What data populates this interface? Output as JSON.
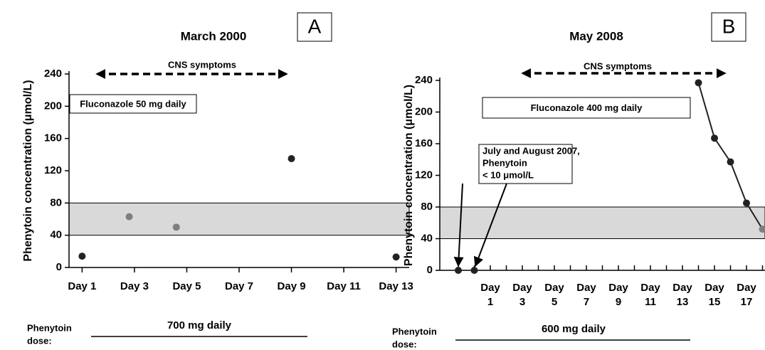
{
  "chart_data": [
    {
      "type": "scatter",
      "panel_label": "A",
      "title": "March 2000",
      "y_label": "Phenytoin concentration (μmol/L)",
      "ylim": [
        0,
        240
      ],
      "yticks": [
        0,
        40,
        80,
        120,
        160,
        200,
        240
      ],
      "xlim": [
        0.5,
        13.5
      ],
      "xticks": [
        {
          "value": 1,
          "label": "Day 1"
        },
        {
          "value": 3,
          "label": "Day 3"
        },
        {
          "value": 5,
          "label": "Day 5"
        },
        {
          "value": 7,
          "label": "Day 7"
        },
        {
          "value": 9,
          "label": "Day 9"
        },
        {
          "value": 11,
          "label": "Day 11"
        },
        {
          "value": 13,
          "label": "Day 13"
        }
      ],
      "reference_range": [
        40,
        80
      ],
      "reference_color": "#d9d9d9",
      "series": [
        {
          "x": [
            1,
            2.8,
            4.6,
            9,
            13
          ],
          "values": [
            14,
            63,
            50,
            135,
            13
          ],
          "point_colors": [
            "#222222",
            "#7f7f7f",
            "#7f7f7f",
            "#222222",
            "#222222"
          ],
          "line": false
        }
      ],
      "symptom_label": "CNS symptoms",
      "drug_label": "Fluconazole 50 mg daily",
      "dose_label": [
        "Phenytoin",
        "dose:"
      ],
      "dose_value": "700 mg daily"
    },
    {
      "type": "scatter",
      "panel_label": "B",
      "title": "May 2008",
      "y_label": "Phenytoin concentration (μmol/L)",
      "ylim": [
        0,
        240
      ],
      "yticks": [
        0,
        40,
        80,
        120,
        160,
        200,
        240
      ],
      "categories": [
        null,
        null,
        "Day 1",
        null,
        "Day 3",
        null,
        "Day 5",
        null,
        "Day 7",
        null,
        "Day 9",
        null,
        "Day 11",
        null,
        "Day 13",
        null,
        "Day 15",
        null,
        "Day 17",
        null
      ],
      "reference_range": [
        40,
        80
      ],
      "reference_color": "#d9d9d9",
      "series": [
        {
          "values": [
            0,
            0,
            null,
            null,
            null,
            null,
            null,
            null,
            null,
            null,
            null,
            null,
            null,
            null,
            null,
            null,
            null,
            null,
            null,
            null
          ],
          "point_colors": [
            "#222222",
            "#222222",
            null,
            null,
            null,
            null,
            null,
            null,
            null,
            null,
            null,
            null,
            null,
            null,
            null,
            null,
            null,
            null,
            null,
            null
          ],
          "line": false
        },
        {
          "values": [
            null,
            null,
            null,
            null,
            null,
            null,
            null,
            null,
            null,
            null,
            null,
            null,
            null,
            null,
            null,
            237,
            167,
            137,
            85,
            52
          ],
          "point_colors": [
            null,
            null,
            null,
            null,
            null,
            null,
            null,
            null,
            null,
            null,
            null,
            null,
            null,
            null,
            null,
            "#222222",
            "#222222",
            "#222222",
            "#222222",
            "#7f7f7f"
          ],
          "line": true,
          "color": "#222222"
        }
      ],
      "symptom_label": "CNS symptoms",
      "drug_label": "Fluconazole 400 mg daily",
      "note_lines": [
        "July and August 2007,",
        "Phenytoin",
        "< 10 μmol/L"
      ],
      "dose_label": [
        "Phenytoin",
        "dose:"
      ],
      "dose_value": "600 mg daily"
    }
  ]
}
